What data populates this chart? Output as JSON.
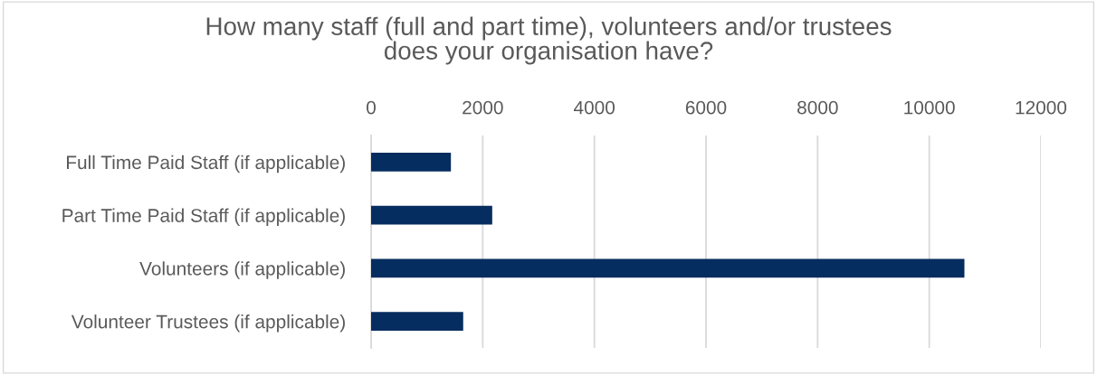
{
  "chart_data": {
    "type": "bar",
    "orientation": "horizontal",
    "title": "How many staff (full and part time), volunteers and/or trustees\ndoes your organisation have?",
    "categories": [
      "Full Time Paid Staff (if applicable)",
      "Part Time Paid Staff (if applicable)",
      "Volunteers (if applicable)",
      "Volunteer Trustees (if applicable)"
    ],
    "values": [
      1430,
      2170,
      10630,
      1650
    ],
    "color": "#062d5f",
    "xlim": [
      0,
      12000
    ],
    "xticks": [
      0,
      2000,
      4000,
      6000,
      8000,
      10000,
      12000
    ],
    "grid": "x",
    "legend": false
  }
}
